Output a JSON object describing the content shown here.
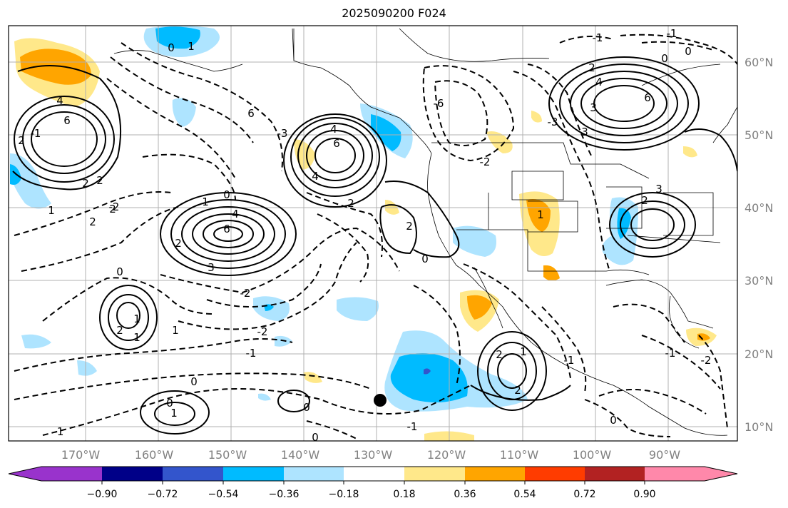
{
  "title": "2025090200 F024",
  "map": {
    "lon_labels": [
      "170°W",
      "160°W",
      "150°W",
      "140°W",
      "130°W",
      "120°W",
      "110°W",
      "100°W",
      "90°W"
    ],
    "lat_labels": [
      "60°N",
      "50°N",
      "40°N",
      "30°N",
      "20°N",
      "10°N"
    ],
    "contour_labels": [
      "4",
      "6",
      "2",
      "2",
      "1",
      "2",
      "0",
      "1",
      "6",
      "4",
      "6",
      "2",
      "3",
      "0",
      "2",
      "1",
      "4",
      "6",
      "1",
      "2",
      "2",
      "3",
      "4",
      "6",
      "0",
      "0",
      "1",
      "2",
      "1",
      "1",
      "2",
      "3",
      "-2",
      "-1",
      "-1",
      "-2",
      "1",
      "0",
      "-3",
      "-2",
      "-1",
      "0",
      "-1",
      "-2",
      "-6",
      "-2",
      "-3",
      "-1",
      "-1",
      "0",
      "0",
      "0",
      "-1",
      "2",
      "3",
      "4",
      "2",
      "1",
      "0",
      "0",
      "2",
      "2",
      "-1"
    ],
    "marker": "filled-circle"
  },
  "colorbar": {
    "labels": [
      "−0.90",
      "−0.72",
      "−0.54",
      "−0.36",
      "−0.18",
      "0.18",
      "0.36",
      "0.54",
      "0.72",
      "0.90"
    ],
    "colors": [
      "#9933cc",
      "#000088",
      "#3355cc",
      "#00bbff",
      "#aee4ff",
      "#ffffff",
      "#ffe88a",
      "#ffa500",
      "#ff3c00",
      "#b22222",
      "#ff88aa"
    ]
  },
  "colors": {
    "pos_light": "#ffe88a",
    "pos_mid": "#ffa500",
    "neg_light": "#aee4ff",
    "neg_mid": "#00bbff",
    "neg_dark": "#3355cc",
    "grid": "#b0b0b0",
    "tick_text": "#808080"
  }
}
